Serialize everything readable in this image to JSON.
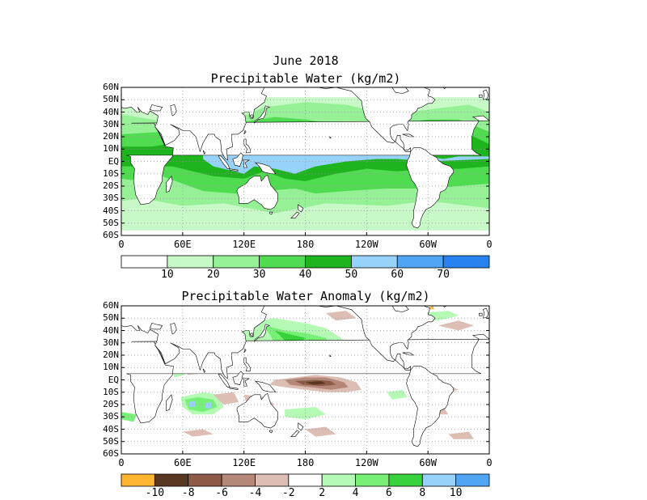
{
  "header": {
    "title": "June 2018"
  },
  "panels": [
    {
      "title": "Precipitable Water (kg/m2)",
      "lat_labels": [
        "60N",
        "50N",
        "40N",
        "30N",
        "20N",
        "10N",
        "EQ",
        "10S",
        "20S",
        "30S",
        "40S",
        "50S",
        "60S"
      ],
      "lon_labels": [
        "0",
        "60E",
        "120E",
        "180",
        "120W",
        "60W",
        "0"
      ],
      "colorbar": {
        "colors": [
          "#ffffff",
          "#c8fac8",
          "#96f096",
          "#50dc50",
          "#1eb41e",
          "#96d2fa",
          "#50a5f5",
          "#2882f0"
        ],
        "labels": [
          "10",
          "20",
          "30",
          "40",
          "50",
          "60",
          "70"
        ]
      }
    },
    {
      "title": "Precipitable Water Anomaly (kg/m2)",
      "lat_labels": [
        "60N",
        "50N",
        "40N",
        "30N",
        "20N",
        "10N",
        "EQ",
        "10S",
        "20S",
        "30S",
        "40S",
        "50S",
        "60S"
      ],
      "lon_labels": [
        "0",
        "60E",
        "120E",
        "180",
        "120W",
        "60W",
        "0"
      ],
      "colorbar": {
        "colors": [
          "#ffb432",
          "#5a3723",
          "#8c5a46",
          "#b48778",
          "#dcbeb4",
          "#ffffff",
          "#b4fab4",
          "#78f078",
          "#37d23c",
          "#96d2fa",
          "#50a5f5"
        ],
        "labels": [
          "-10",
          "-8",
          "-6",
          "-4",
          "-2",
          "2",
          "4",
          "6",
          "8",
          "10"
        ]
      }
    }
  ]
}
